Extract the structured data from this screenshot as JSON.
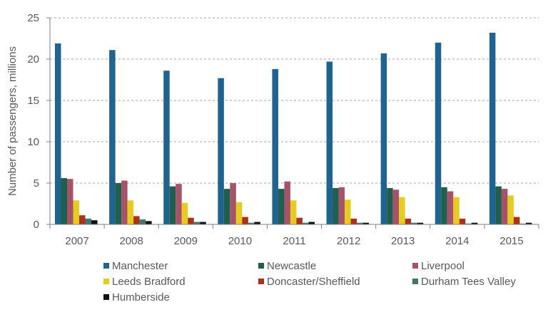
{
  "chart_data": {
    "type": "bar",
    "title": "",
    "xlabel": "",
    "ylabel": "Number of passengers, millions",
    "ylim": [
      0,
      25
    ],
    "yticks": [
      0,
      5,
      10,
      15,
      20,
      25
    ],
    "grid": "horizontal dashed",
    "legend_position": "bottom",
    "categories": [
      "2007",
      "2008",
      "2009",
      "2010",
      "2011",
      "2012",
      "2013",
      "2014",
      "2015"
    ],
    "series": [
      {
        "name": "Manchester",
        "color": "#1f6391",
        "values": [
          21.9,
          21.1,
          18.6,
          17.7,
          18.8,
          19.7,
          20.7,
          22.0,
          23.2
        ]
      },
      {
        "name": "Newcastle",
        "color": "#1f5f4e",
        "values": [
          5.6,
          5.0,
          4.6,
          4.3,
          4.3,
          4.4,
          4.4,
          4.5,
          4.6
        ]
      },
      {
        "name": "Liverpool",
        "color": "#a8526a",
        "values": [
          5.5,
          5.3,
          4.9,
          5.0,
          5.2,
          4.5,
          4.2,
          4.0,
          4.3
        ]
      },
      {
        "name": "Leeds Bradford",
        "color": "#e6cc1c",
        "values": [
          2.9,
          2.9,
          2.6,
          2.7,
          2.9,
          3.0,
          3.3,
          3.3,
          3.5
        ]
      },
      {
        "name": "Doncaster/Sheffield",
        "color": "#a8321e",
        "values": [
          1.1,
          1.0,
          0.8,
          0.9,
          0.8,
          0.7,
          0.7,
          0.7,
          0.9
        ]
      },
      {
        "name": "Durham Tees Valley",
        "color": "#3d7a6d",
        "values": [
          0.7,
          0.6,
          0.3,
          0.2,
          0.2,
          0.2,
          0.2,
          0.1,
          0.1
        ]
      },
      {
        "name": "Humberside",
        "color": "#111111",
        "values": [
          0.5,
          0.4,
          0.3,
          0.3,
          0.3,
          0.2,
          0.2,
          0.2,
          0.2
        ]
      }
    ]
  }
}
